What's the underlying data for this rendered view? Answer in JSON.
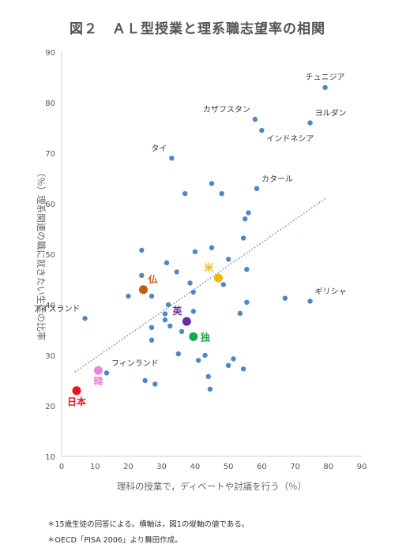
{
  "chart_data": {
    "type": "scatter",
    "title": "図２　ＡＬ型授業と理系職志望率の相関",
    "xlabel": "理科の授業で，ディベートや討議を行う（％）",
    "ylabel": "（％）理系関連の職に就きたい生徒の比率",
    "xlim": [
      0,
      90
    ],
    "ylim": [
      10,
      90
    ],
    "xticks": [
      0,
      10,
      20,
      30,
      40,
      50,
      60,
      70,
      80,
      90
    ],
    "yticks": [
      10,
      20,
      30,
      40,
      50,
      60,
      70,
      80,
      90
    ],
    "grid": false,
    "trendline": {
      "style": "dotted",
      "from": [
        4,
        26.7
      ],
      "to": [
        79,
        61
      ]
    },
    "colors": {
      "point": "#4f86c6",
      "trend": "#4f86c6"
    },
    "points": [
      {
        "x": 79,
        "y": 83,
        "label": "チュニジア",
        "label_pos": "above"
      },
      {
        "x": 58,
        "y": 76.7,
        "label": "カザフスタン",
        "label_pos": "above-left"
      },
      {
        "x": 74.5,
        "y": 76,
        "label": "ヨルダン",
        "label_pos": "above-right"
      },
      {
        "x": 60,
        "y": 74.5,
        "label": "インドネシア",
        "label_pos": "below-right"
      },
      {
        "x": 33,
        "y": 69,
        "label": "タイ",
        "label_pos": "above-left"
      },
      {
        "x": 58.5,
        "y": 63,
        "label": "カタール",
        "label_pos": "above-right"
      },
      {
        "x": 74.5,
        "y": 40.7,
        "label": "ギリシャ",
        "label_pos": "above-right"
      },
      {
        "x": 7,
        "y": 37.3,
        "label": "アイスランド",
        "label_pos": "above-left"
      },
      {
        "x": 13.5,
        "y": 26.5,
        "label": "フィンランド",
        "label_pos": "above-right"
      },
      {
        "x": 4.5,
        "y": 23,
        "label": "日本",
        "label_pos": "below",
        "color": "#e8131b",
        "highlight": true
      },
      {
        "x": 11,
        "y": 27,
        "label": "韓",
        "label_pos": "below",
        "color": "#e985d8",
        "highlight": true
      },
      {
        "x": 24.5,
        "y": 43,
        "label": "仏",
        "label_pos": "above-right",
        "color": "#c55a11",
        "highlight": true
      },
      {
        "x": 37.5,
        "y": 36.7,
        "label": "英",
        "label_pos": "above-left",
        "color": "#6a2a9f",
        "highlight": true
      },
      {
        "x": 39.5,
        "y": 33.7,
        "label": "独",
        "label_pos": "right",
        "color": "#19a64a",
        "highlight": true
      },
      {
        "x": 47,
        "y": 45.3,
        "label": "米",
        "label_pos": "above-left",
        "color": "#f5b50c",
        "highlight": true
      },
      {
        "x": 24,
        "y": 50.8
      },
      {
        "x": 24,
        "y": 45.8
      },
      {
        "x": 24.5,
        "y": 43
      },
      {
        "x": 20,
        "y": 41.7
      },
      {
        "x": 27,
        "y": 41.7
      },
      {
        "x": 31.5,
        "y": 48.3
      },
      {
        "x": 34.5,
        "y": 46.5
      },
      {
        "x": 38.5,
        "y": 44.3
      },
      {
        "x": 37,
        "y": 62
      },
      {
        "x": 40,
        "y": 50.5
      },
      {
        "x": 45,
        "y": 64
      },
      {
        "x": 48,
        "y": 62
      },
      {
        "x": 45,
        "y": 51.3
      },
      {
        "x": 50,
        "y": 49
      },
      {
        "x": 54.5,
        "y": 53.2
      },
      {
        "x": 55,
        "y": 57
      },
      {
        "x": 56,
        "y": 58.2
      },
      {
        "x": 55.5,
        "y": 47
      },
      {
        "x": 48.5,
        "y": 44
      },
      {
        "x": 39.5,
        "y": 42.5
      },
      {
        "x": 32,
        "y": 40
      },
      {
        "x": 31,
        "y": 38.2
      },
      {
        "x": 31,
        "y": 37
      },
      {
        "x": 32.5,
        "y": 35.8
      },
      {
        "x": 27,
        "y": 35.5
      },
      {
        "x": 27,
        "y": 33
      },
      {
        "x": 36,
        "y": 34.7
      },
      {
        "x": 39.5,
        "y": 38.7
      },
      {
        "x": 41,
        "y": 29
      },
      {
        "x": 43,
        "y": 30
      },
      {
        "x": 35,
        "y": 30.3
      },
      {
        "x": 44,
        "y": 25.8
      },
      {
        "x": 44.5,
        "y": 23.3
      },
      {
        "x": 50,
        "y": 28
      },
      {
        "x": 51.5,
        "y": 29.3
      },
      {
        "x": 54.5,
        "y": 27.3
      },
      {
        "x": 53.5,
        "y": 38.3
      },
      {
        "x": 55.5,
        "y": 40.5
      },
      {
        "x": 67,
        "y": 41.3
      },
      {
        "x": 25,
        "y": 25
      },
      {
        "x": 28,
        "y": 24.3
      }
    ],
    "notes": [
      "＊15歳生徒の回答による。横軸は，図1の縦軸の値である。",
      "＊OECD「PISA 2006」より舞田作成。"
    ]
  }
}
